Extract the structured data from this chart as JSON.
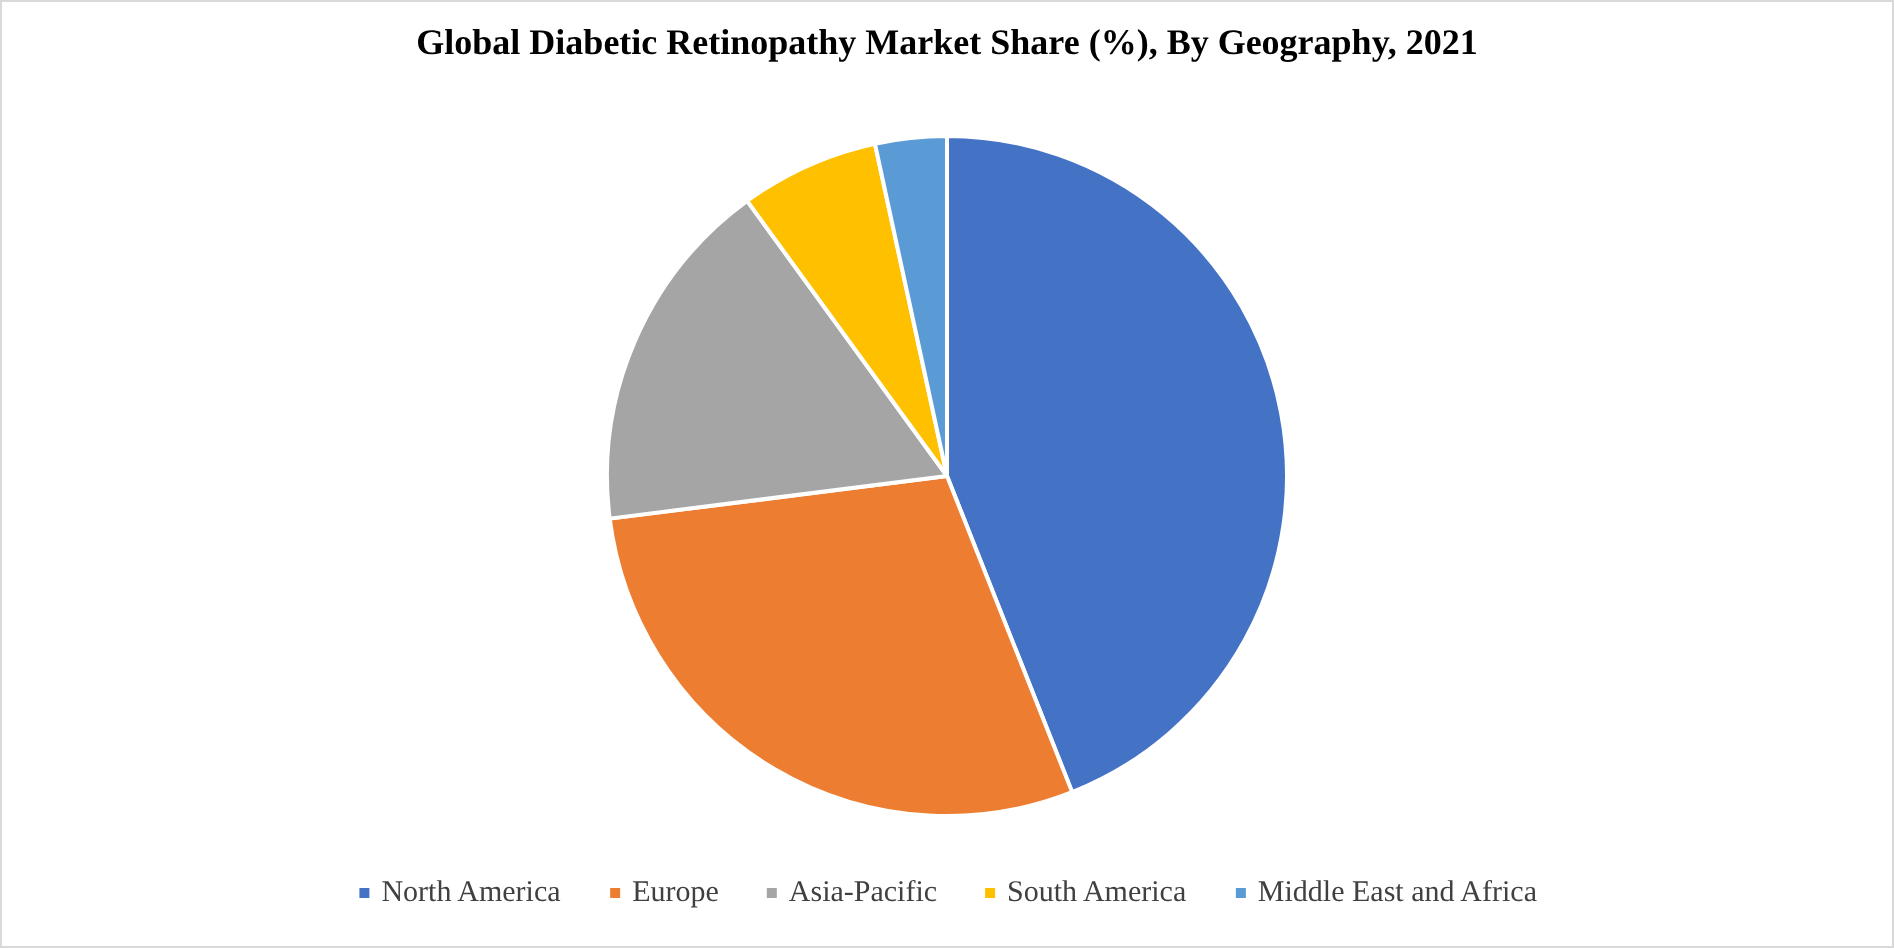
{
  "chart_data": {
    "type": "pie",
    "title": "Global Diabetic Retinopathy Market Share (%), By Geography, 2021",
    "categories": [
      "North America",
      "Europe",
      "Asia-Pacific",
      "South America",
      "Middle East and Africa"
    ],
    "values": [
      44,
      29,
      17,
      6.6,
      3.4
    ],
    "colors": [
      "#4472c4",
      "#ed7d31",
      "#a5a5a5",
      "#ffc000",
      "#5b9bd5"
    ],
    "legend": "bottom"
  }
}
